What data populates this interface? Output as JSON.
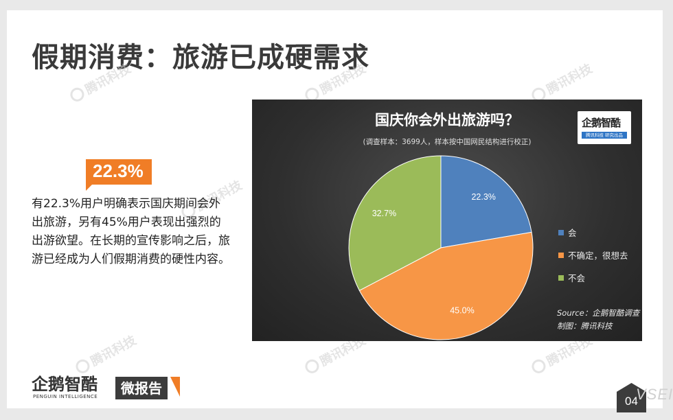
{
  "page": {
    "title": "假期消费：旅游已成硬需求",
    "highlight_value": "22.3%",
    "description": "有22.3%用户明确表示国庆期间会外出旅游，另有45%用户表现出强烈的出游欲望。在长期的宣传影响之后，旅游已经成为人们假期消费的硬性内容。",
    "watermark_text": "腾讯科技",
    "page_number": "04",
    "corner_watermark": "VSEIT"
  },
  "brand": {
    "logo_name": "企鹅智酷",
    "logo_english": "PENGUIN INTELLIGENCE",
    "tag": "微报告",
    "chart_logo_name": "企鹅智酷",
    "chart_logo_sub": "腾讯科技  研究出品"
  },
  "chart_data": {
    "type": "pie",
    "title": "国庆你会外出旅游吗？",
    "subtitle": "(调查样本：3699人，样本按中国网民结构进行校正)",
    "categories": [
      "会",
      "不确定，很想去",
      "不会"
    ],
    "values": [
      22.3,
      45.0,
      32.7
    ],
    "value_labels": [
      "22.3%",
      "45.0%",
      "32.7%"
    ],
    "colors": [
      "#4f81bd",
      "#f79646",
      "#9bbb59"
    ],
    "legend_position": "right",
    "source": "Source：企鹅智酷调查",
    "credit": "制图：腾讯科技"
  },
  "colors": {
    "accent": "#f07d26",
    "panel_bg": "#333333",
    "title_text": "#3a3a3a"
  }
}
